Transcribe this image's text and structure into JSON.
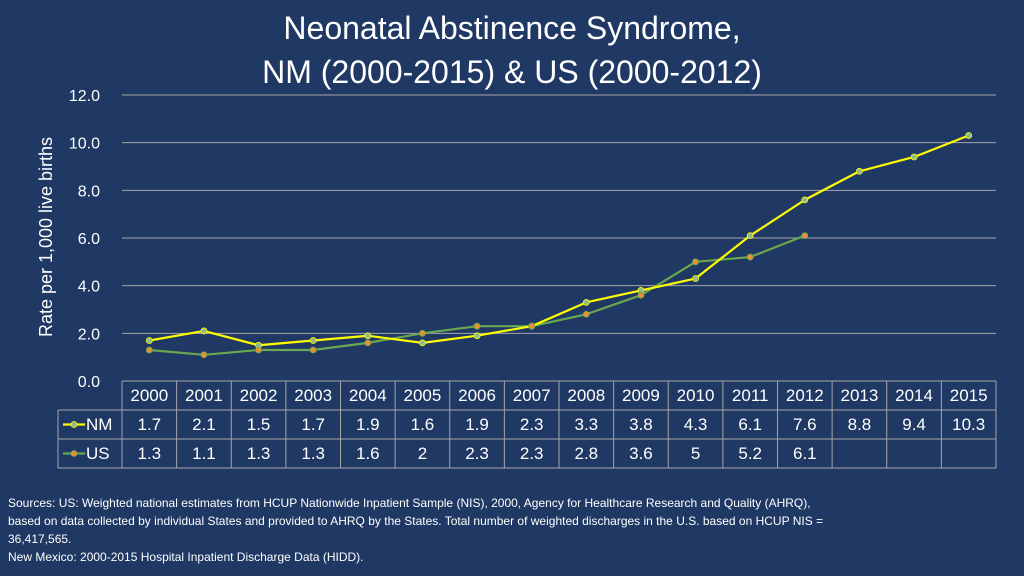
{
  "chart_data": {
    "type": "line",
    "title": [
      "Neonatal Abstinence Syndrome,",
      "NM (2000-2015) & US (2000-2012)"
    ],
    "ylabel": "Rate per 1,000 live births",
    "xlabel": "",
    "ylim": [
      0,
      12
    ],
    "y_ticks": [
      "0.0",
      "2.0",
      "4.0",
      "6.0",
      "8.0",
      "10.0",
      "12.0"
    ],
    "grid": true,
    "legend": "data-table-left",
    "categories": [
      "2000",
      "2001",
      "2002",
      "2003",
      "2004",
      "2005",
      "2006",
      "2007",
      "2008",
      "2009",
      "2010",
      "2011",
      "2012",
      "2013",
      "2014",
      "2015"
    ],
    "series": [
      {
        "name": "NM",
        "color": "#ffff00",
        "marker_color": "#8fbc8f",
        "values": [
          1.7,
          2.1,
          1.5,
          1.7,
          1.9,
          1.6,
          1.9,
          2.3,
          3.3,
          3.8,
          4.3,
          6.1,
          7.6,
          8.8,
          9.4,
          10.3
        ],
        "labels": [
          "1.7",
          "2.1",
          "1.5",
          "1.7",
          "1.9",
          "1.6",
          "1.9",
          "2.3",
          "3.3",
          "3.8",
          "4.3",
          "6.1",
          "7.6",
          "8.8",
          "9.4",
          "10.3"
        ]
      },
      {
        "name": "US",
        "color": "#6aa84f",
        "marker_color": "#e69138",
        "values": [
          1.3,
          1.1,
          1.3,
          1.3,
          1.6,
          2,
          2.3,
          2.3,
          2.8,
          3.6,
          5,
          5.2,
          6.1,
          null,
          null,
          null
        ],
        "labels": [
          "1.3",
          "1.1",
          "1.3",
          "1.3",
          "1.6",
          "2",
          "2.3",
          "2.3",
          "2.8",
          "3.6",
          "5",
          "5.2",
          "6.1",
          "",
          "",
          ""
        ]
      }
    ]
  },
  "sources": {
    "line1": "Sources: US: Weighted national estimates from HCUP Nationwide Inpatient Sample (NIS), 2000, Agency for Healthcare Research and Quality (AHRQ),",
    "line2": "based on data collected by individual States and provided to AHRQ by the States. Total number of weighted discharges in the U.S. based on HCUP NIS =",
    "line3": "36,417,565.",
    "line4": "New Mexico: 2000-2015 Hospital Inpatient Discharge Data (HIDD)."
  }
}
